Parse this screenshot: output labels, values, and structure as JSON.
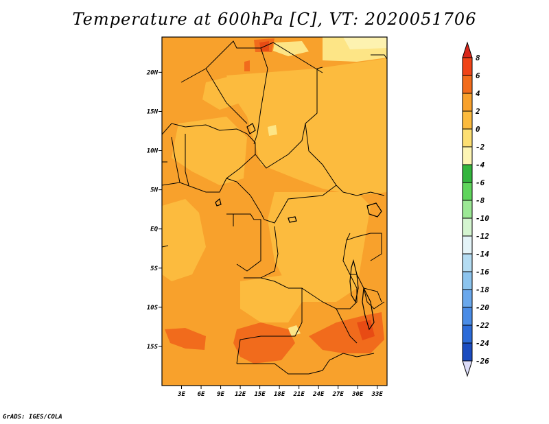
{
  "title": "Temperature at 600hPa [C], VT: 2020051706",
  "credit": "GrADS: IGES/COLA",
  "map": {
    "lat_range": [
      -20,
      24.5
    ],
    "lon_range": [
      0,
      34.5
    ],
    "lat_ticks": [
      {
        "value": 20,
        "label": "20N"
      },
      {
        "value": 15,
        "label": "15N"
      },
      {
        "value": 10,
        "label": "10N"
      },
      {
        "value": 5,
        "label": "5N"
      },
      {
        "value": 0,
        "label": "EQ"
      },
      {
        "value": -5,
        "label": "5S"
      },
      {
        "value": -10,
        "label": "10S"
      },
      {
        "value": -15,
        "label": "15S"
      }
    ],
    "lon_ticks": [
      {
        "value": 3,
        "label": "3E"
      },
      {
        "value": 6,
        "label": "6E"
      },
      {
        "value": 9,
        "label": "9E"
      },
      {
        "value": 12,
        "label": "12E"
      },
      {
        "value": 15,
        "label": "15E"
      },
      {
        "value": 18,
        "label": "18E"
      },
      {
        "value": 21,
        "label": "21E"
      },
      {
        "value": 24,
        "label": "24E"
      },
      {
        "value": 27,
        "label": "27E"
      },
      {
        "value": 30,
        "label": "30E"
      },
      {
        "value": 33,
        "label": "33E"
      }
    ],
    "fill_colors": {
      "range_0_2": "#fcbb3e",
      "range_2_4": "#f8a12c",
      "range_4_6": "#f16b1c",
      "range_6_8": "#e84b14",
      "range_m2_0": "#fde586",
      "range_m4_m2": "#fdf2b0"
    }
  },
  "colorbar": {
    "levels": [
      "8",
      "6",
      "4",
      "2",
      "0",
      "-2",
      "-4",
      "-6",
      "-8",
      "-10",
      "-12",
      "-14",
      "-16",
      "-18",
      "-20",
      "-22",
      "-24",
      "-26"
    ],
    "colors": [
      "#e02010",
      "#f04418",
      "#f26c1c",
      "#f8a12c",
      "#fcbb3e",
      "#fddf72",
      "#fdf5b4",
      "#33b53d",
      "#5fd55c",
      "#9ce895",
      "#d4f5d0",
      "#e4f4f8",
      "#b4dcf2",
      "#8cc4ee",
      "#6aa8ec",
      "#4a8ce6",
      "#2c6bd8",
      "#1b4cc0",
      "#102e96",
      "#081870"
    ],
    "top_triangle": "#d8261a",
    "bottom_triangle": "#dcdcf8"
  }
}
